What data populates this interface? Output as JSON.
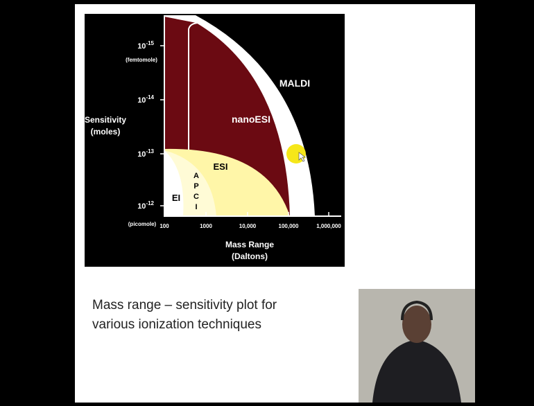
{
  "slide": {
    "figure": {
      "y_axis": {
        "title_lines": [
          "Sensitivity",
          "(moles)"
        ],
        "ticks": [
          {
            "base": "10",
            "exp": "-15"
          },
          {
            "base": "10",
            "exp": "-14"
          },
          {
            "base": "10",
            "exp": "-13"
          },
          {
            "base": "10",
            "exp": "-12"
          }
        ],
        "top_note": "(femtomole)",
        "bottom_note": "(picomole)"
      },
      "x_axis": {
        "title_lines": [
          "Mass Range",
          "(Daltons)"
        ],
        "ticks": [
          "100",
          "1000",
          "10,000",
          "100,000",
          "1,000,000"
        ]
      },
      "regions": {
        "maldi": "MALDI",
        "nanoesi": "nanoESI",
        "esi": "ESI",
        "ei": "EI",
        "apci_letters": [
          "A",
          "P",
          "C",
          "I"
        ]
      }
    },
    "caption_lines": [
      "Mass range – sensitivity plot for",
      "various ionization techniques"
    ]
  }
}
